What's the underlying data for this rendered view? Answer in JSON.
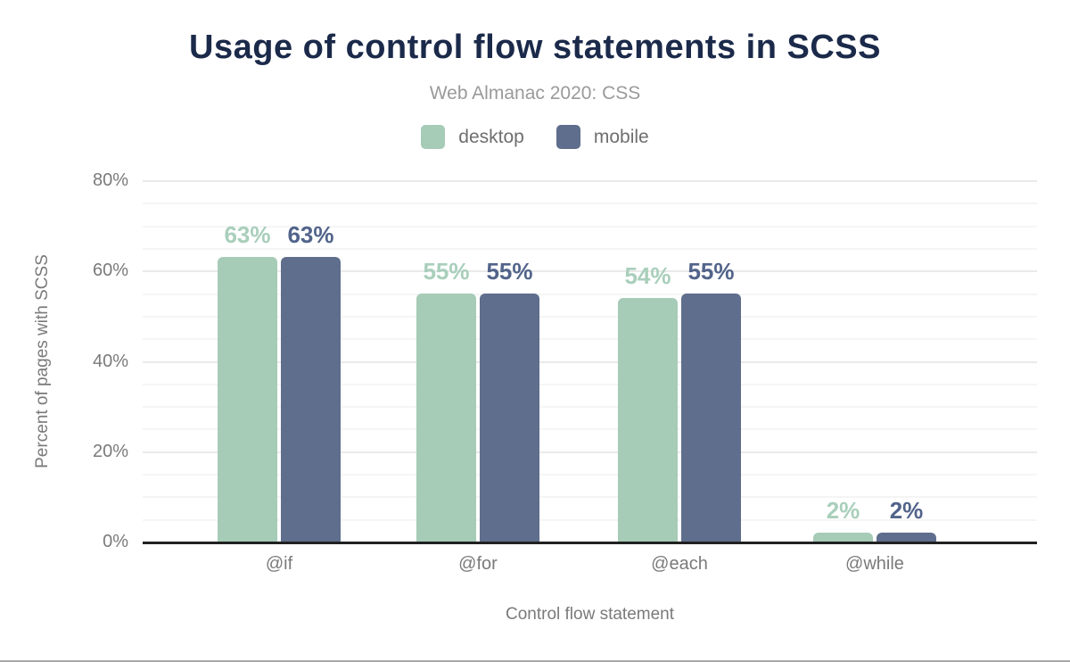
{
  "chart_data": {
    "type": "bar",
    "title": "Usage of control flow statements in SCSS",
    "subtitle": "Web Almanac 2020: CSS",
    "categories": [
      "@if",
      "@for",
      "@each",
      "@while"
    ],
    "series": [
      {
        "name": "desktop",
        "color": "#a6cbb7",
        "label_color": "#a9cfbb",
        "values": [
          63,
          55,
          54,
          2
        ]
      },
      {
        "name": "mobile",
        "color": "#5f6e8c",
        "label_color": "#52648a",
        "values": [
          63,
          55,
          55,
          2
        ]
      }
    ],
    "value_suffix": "%",
    "xlabel": "Control flow statement",
    "ylabel": "Percent of pages with SCSS",
    "ylim": [
      0,
      80
    ],
    "ytick_step": 20,
    "ytick_labels": [
      "0%",
      "20%",
      "40%",
      "60%",
      "80%"
    ],
    "grid_step": 5,
    "grid": "on",
    "legend_position": "top"
  }
}
